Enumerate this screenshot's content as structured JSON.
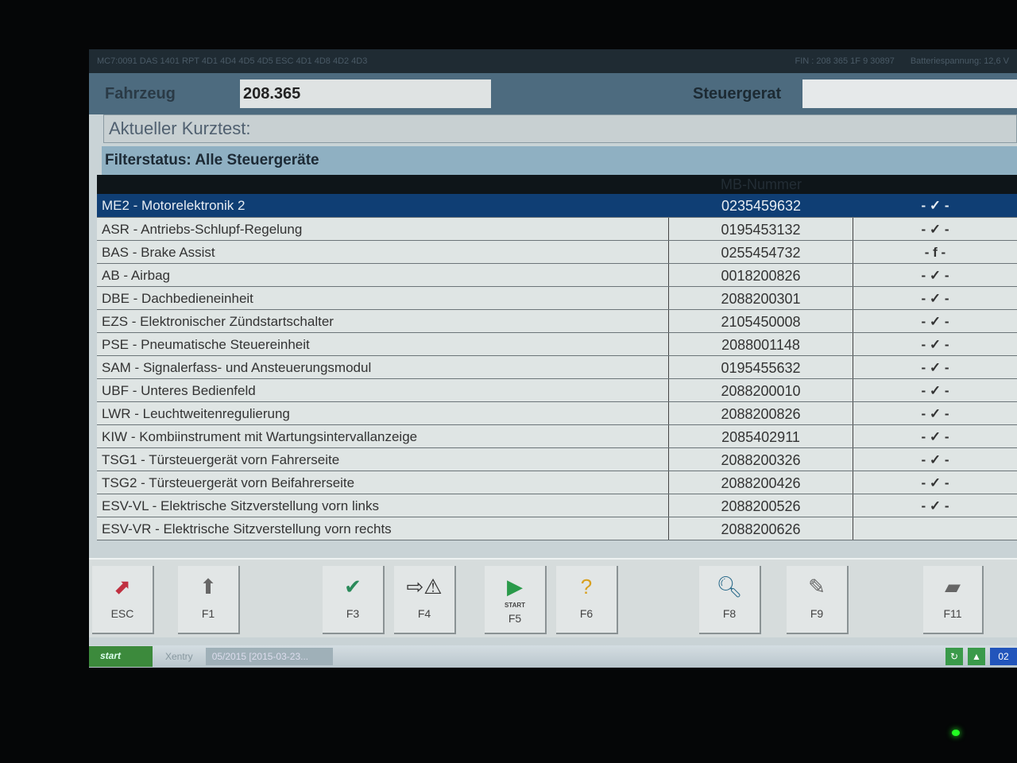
{
  "titlebar": {
    "left": "MC7:0091 DAS 1401 RPT 4D1 4D4 4D5 4D5 ESC 4D1 4D8 4D2 4D3",
    "vin": "FIN : 208 365 1F 9 30897",
    "battery": "Batteriespannung: 12,6 V"
  },
  "header": {
    "vehicle_label": "Fahrzeug",
    "vehicle_value": "208.365",
    "ecu_label": "Steuergerat",
    "ecu_value": ""
  },
  "kurztest": "Aktueller Kurztest:",
  "filter": "Filterstatus: Alle Steuergeräte",
  "table": {
    "headers": [
      "",
      "MB-Nummer",
      ""
    ],
    "rows": [
      {
        "name": "ME2 - Motorelektronik 2",
        "mb": "0235459632",
        "status": "- ✓ -"
      },
      {
        "name": "ASR - Antriebs-Schlupf-Regelung",
        "mb": "0195453132",
        "status": "- ✓ -"
      },
      {
        "name": "BAS - Brake Assist",
        "mb": "0255454732",
        "status": "- f -"
      },
      {
        "name": "AB - Airbag",
        "mb": "0018200826",
        "status": "- ✓ -"
      },
      {
        "name": "DBE - Dachbedieneinheit",
        "mb": "2088200301",
        "status": "- ✓ -"
      },
      {
        "name": "EZS - Elektronischer Zündstartschalter",
        "mb": "2105450008",
        "status": "- ✓ -"
      },
      {
        "name": "PSE - Pneumatische Steuereinheit",
        "mb": "2088001148",
        "status": "- ✓ -"
      },
      {
        "name": "SAM - Signalerfass- und Ansteuerungsmodul",
        "mb": "0195455632",
        "status": "- ✓ -"
      },
      {
        "name": "UBF - Unteres Bedienfeld",
        "mb": "2088200010",
        "status": "- ✓ -"
      },
      {
        "name": "LWR - Leuchtweitenregulierung",
        "mb": "2088200826",
        "status": "- ✓ -"
      },
      {
        "name": "KIW - Kombiinstrument mit Wartungsintervallanzeige",
        "mb": "2085402911",
        "status": "- ✓ -"
      },
      {
        "name": "TSG1 - Türsteuergerät vorn Fahrerseite",
        "mb": "2088200326",
        "status": "- ✓ -"
      },
      {
        "name": "TSG2 - Türsteuergerät vorn Beifahrerseite",
        "mb": "2088200426",
        "status": "- ✓ -"
      },
      {
        "name": "ESV-VL - Elektrische Sitzverstellung vorn links",
        "mb": "2088200526",
        "status": "- ✓ -"
      },
      {
        "name": "ESV-VR - Elektrische Sitzverstellung vorn rechts",
        "mb": "2088200626",
        "status": ""
      }
    ]
  },
  "fkeys": [
    {
      "label": "ESC",
      "icon": "exit-icon"
    },
    {
      "label": "F1",
      "icon": "arrow-up-icon"
    },
    {
      "label": "F3",
      "icon": "checkmark-icon"
    },
    {
      "label": "F4",
      "icon": "transfer-warning-icon"
    },
    {
      "label": "F5",
      "icon": "start-icon",
      "sub": "START"
    },
    {
      "label": "F6",
      "icon": "help-icon"
    },
    {
      "label": "F8",
      "icon": "magnifier-icon"
    },
    {
      "label": "F9",
      "icon": "notepad-icon"
    },
    {
      "label": "F11",
      "icon": "eraser-icon"
    }
  ],
  "taskbar": {
    "start": "start",
    "item1": "Xentry",
    "item2": "05/2015 [2015-03-23...",
    "tray_badge": "02"
  },
  "colors": {
    "selected_row": "#0f3e74",
    "header": "#4d6b7f",
    "filter": "#8fb0c2"
  }
}
